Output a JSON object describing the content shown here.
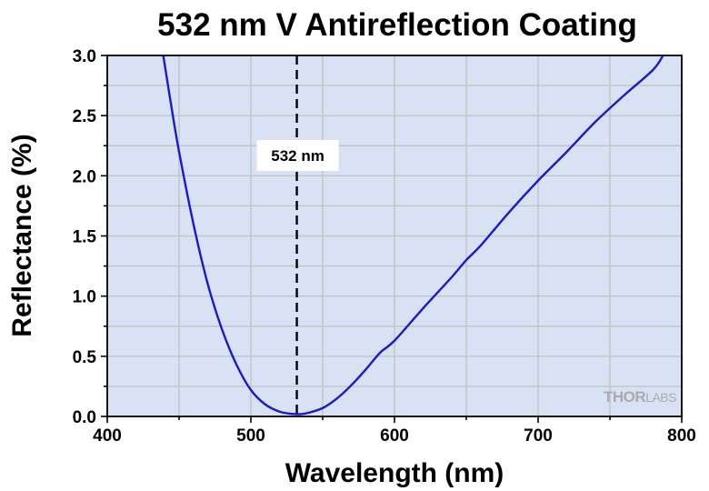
{
  "chart_data": {
    "type": "line",
    "title": "532 nm V Antireflection Coating",
    "xlabel": "Wavelength (nm)",
    "ylabel": "Reflectance (%)",
    "xlim": [
      400,
      800
    ],
    "ylim": [
      0,
      3.0
    ],
    "x_ticks": [
      "400",
      "500",
      "600",
      "700",
      "800"
    ],
    "y_ticks": [
      "0.0",
      "0.5",
      "1.0",
      "1.5",
      "2.0",
      "2.5",
      "3.0"
    ],
    "grid": true,
    "background_color": "#d9e1f5",
    "series": [
      {
        "name": "Reflectance",
        "color": "#1a1acc",
        "x": [
          439,
          445,
          450,
          460,
          470,
          480,
          490,
          500,
          510,
          520,
          530,
          535,
          540,
          550,
          560,
          570,
          580,
          590,
          600,
          620,
          640,
          650,
          660,
          680,
          700,
          720,
          740,
          760,
          780,
          787
        ],
        "y": [
          3.0,
          2.55,
          2.2,
          1.6,
          1.1,
          0.72,
          0.43,
          0.22,
          0.1,
          0.04,
          0.02,
          0.02,
          0.03,
          0.07,
          0.15,
          0.26,
          0.39,
          0.53,
          0.63,
          0.9,
          1.16,
          1.3,
          1.42,
          1.7,
          1.96,
          2.2,
          2.45,
          2.67,
          2.88,
          3.0
        ]
      }
    ],
    "annotations": [
      {
        "type": "vline",
        "x": 532,
        "style": "dashed",
        "color": "#000000",
        "label": "532 nm"
      }
    ]
  },
  "watermark": {
    "prefix": "THOR",
    "suffix": "LABS"
  }
}
